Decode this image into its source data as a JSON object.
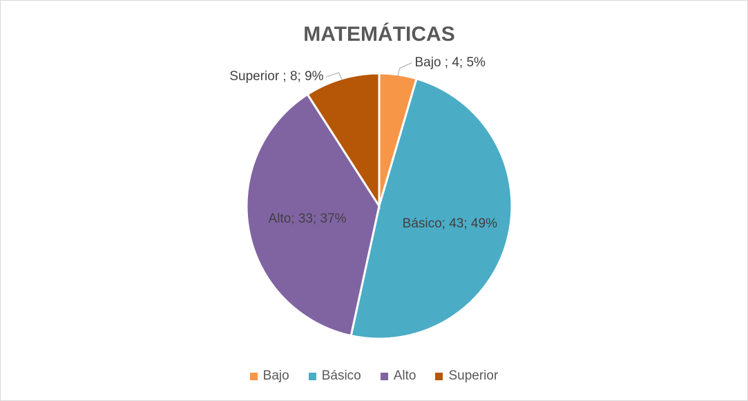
{
  "chart_data": {
    "type": "pie",
    "title": "MATEMÁTICAS",
    "categories": [
      "Bajo",
      "Básico",
      "Alto",
      "Superior"
    ],
    "values": [
      4,
      43,
      33,
      8
    ],
    "value_labels": [
      "Bajo ; 4; 5%",
      "Básico; 43; 49%",
      "Alto; 33; 37%",
      "Superior ; 8; 9%"
    ],
    "colors": [
      "#f79646",
      "#4bacc6",
      "#8064a2",
      "#b65708"
    ],
    "legend": "bottom"
  }
}
